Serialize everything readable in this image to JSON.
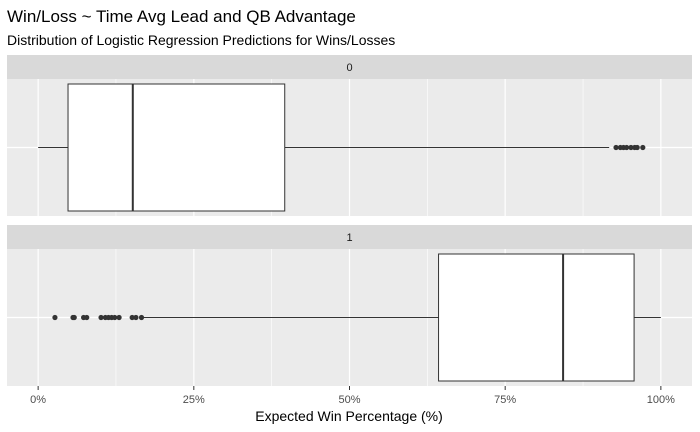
{
  "chart_data": {
    "type": "boxplot",
    "title": "Win/Loss ~ Time Avg Lead and QB Advantage",
    "subtitle": "Distribution of Logistic Regression Predictions for Wins/Losses",
    "xlabel": "Expected Win Percentage (%)",
    "xlim": [
      -0.05,
      1.05
    ],
    "x_ticks": [
      0,
      0.25,
      0.5,
      0.75,
      1.0
    ],
    "x_tick_labels": [
      "0%",
      "25%",
      "50%",
      "75%",
      "100%"
    ],
    "grid": true,
    "panels": [
      {
        "label": "0",
        "whisker_low": 0.0,
        "q1": 0.048,
        "median": 0.152,
        "q3": 0.396,
        "whisker_high": 0.917,
        "outliers": [
          0.928,
          0.935,
          0.94,
          0.945,
          0.952,
          0.958,
          0.962,
          0.971
        ]
      },
      {
        "label": "1",
        "whisker_low": 0.17,
        "q1": 0.643,
        "median": 0.843,
        "q3": 0.957,
        "whisker_high": 1.0,
        "outliers": [
          0.027,
          0.056,
          0.058,
          0.073,
          0.078,
          0.101,
          0.108,
          0.113,
          0.118,
          0.123,
          0.13,
          0.151,
          0.157,
          0.166
        ]
      }
    ]
  }
}
